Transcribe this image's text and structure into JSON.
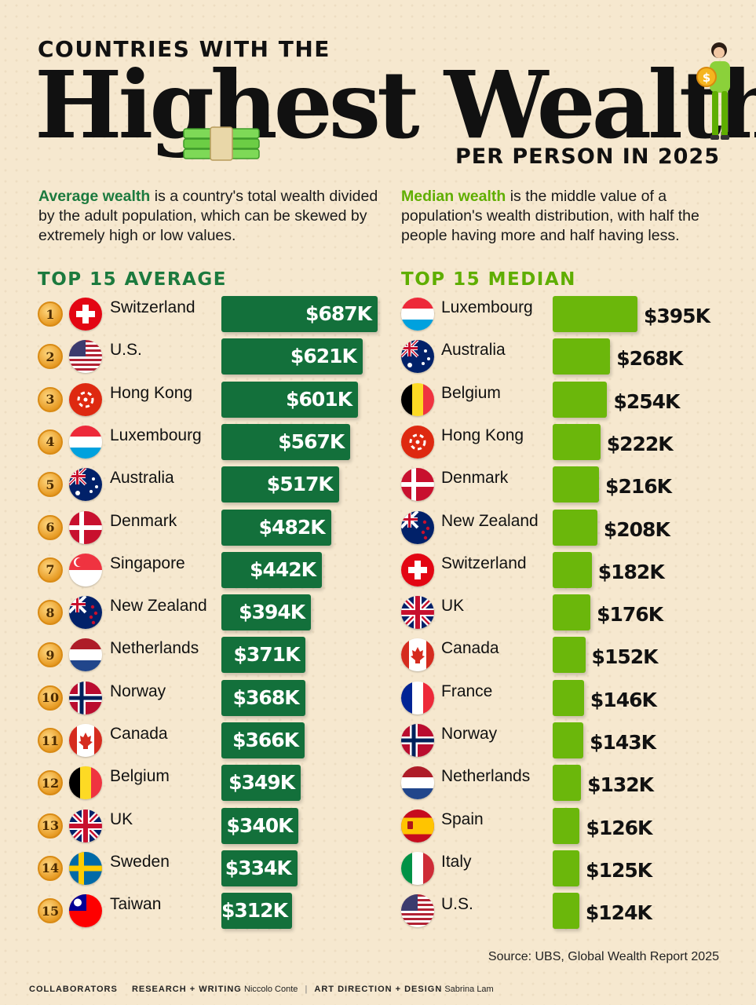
{
  "header": {
    "kicker": "COUNTRIES WITH THE",
    "title": "Highest Wealth",
    "subtitle": "PER PERSON IN 2025"
  },
  "descriptions": {
    "average_term": "Average wealth",
    "average_text": " is a country's total wealth divided by the adult population, which can be skewed by extremely high or low values.",
    "median_term": "Median wealth",
    "median_text": " is the middle value of a population's wealth distribution, with half the people having more and half having less."
  },
  "colors": {
    "average_bar": "#13703b",
    "median_bar": "#6bb70b",
    "average_accent": "#1c7a3e",
    "median_accent": "#5fae00",
    "background": "#f6e8cf"
  },
  "chart_data": [
    {
      "type": "bar",
      "orientation": "horizontal",
      "title": "TOP 15 AVERAGE",
      "unit": "USD thousands",
      "ranks": [
        "1",
        "2",
        "3",
        "4",
        "5",
        "6",
        "7",
        "8",
        "9",
        "10",
        "11",
        "12",
        "13",
        "14",
        "15"
      ],
      "categories": [
        "Switzerland",
        "U.S.",
        "Hong Kong",
        "Luxembourg",
        "Australia",
        "Denmark",
        "Singapore",
        "New Zealand",
        "Netherlands",
        "Norway",
        "Canada",
        "Belgium",
        "UK",
        "Sweden",
        "Taiwan"
      ],
      "flags": [
        "ch",
        "us",
        "hk",
        "lu",
        "au",
        "dk",
        "sg",
        "nz",
        "nl",
        "no",
        "ca",
        "be",
        "uk",
        "se",
        "tw"
      ],
      "values": [
        687,
        621,
        601,
        567,
        517,
        482,
        442,
        394,
        371,
        368,
        366,
        349,
        340,
        334,
        312
      ],
      "labels": [
        "$687K",
        "$621K",
        "$601K",
        "$567K",
        "$517K",
        "$482K",
        "$442K",
        "$394K",
        "$371K",
        "$368K",
        "$366K",
        "$349K",
        "$340K",
        "$334K",
        "$312K"
      ]
    },
    {
      "type": "bar",
      "orientation": "horizontal",
      "title": "TOP 15 MEDIAN",
      "unit": "USD thousands",
      "categories": [
        "Luxembourg",
        "Australia",
        "Belgium",
        "Hong Kong",
        "Denmark",
        "New Zealand",
        "Switzerland",
        "UK",
        "Canada",
        "France",
        "Norway",
        "Netherlands",
        "Spain",
        "Italy",
        "U.S."
      ],
      "flags": [
        "lu",
        "au",
        "be",
        "hk",
        "dk",
        "nz",
        "ch",
        "uk",
        "ca",
        "fr",
        "no",
        "nl",
        "es",
        "it",
        "us"
      ],
      "values": [
        395,
        268,
        254,
        222,
        216,
        208,
        182,
        176,
        152,
        146,
        143,
        132,
        126,
        125,
        124
      ],
      "labels": [
        "$395K",
        "$268K",
        "$254K",
        "$222K",
        "$216K",
        "$208K",
        "$182K",
        "$176K",
        "$152K",
        "$146K",
        "$143K",
        "$132K",
        "$126K",
        "$125K",
        "$124K"
      ]
    }
  ],
  "source": "Source: UBS, Global Wealth Report 2025",
  "footer": {
    "collaborators": "COLLABORATORS",
    "research_label": "RESEARCH + WRITING",
    "research_name": "Niccolo Conte",
    "design_label": "ART DIRECTION + DESIGN",
    "design_name": "Sabrina Lam"
  }
}
